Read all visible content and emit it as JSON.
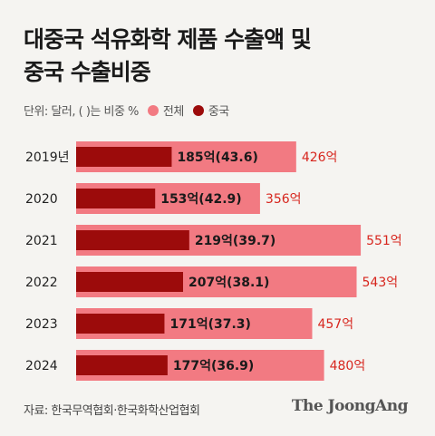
{
  "title_line1": "대중국 석유화학 제품 수출액 및",
  "title_line2": "중국 수출비중",
  "legend": {
    "unit": "단위: 달러, ( )는 비중 %",
    "total_label": "전체",
    "china_label": "중국",
    "total_color": "#f27a82",
    "china_color": "#9c0b0b"
  },
  "source": "자료: 한국무역협회·한국화학산업협회",
  "brand": "The JoongAng",
  "chart_data": {
    "type": "bar",
    "orientation": "horizontal",
    "categories": [
      "2019년",
      "2020",
      "2021",
      "2022",
      "2023",
      "2024"
    ],
    "series": [
      {
        "name": "전체",
        "values": [
          426,
          356,
          551,
          543,
          457,
          480
        ],
        "labels": [
          "426억",
          "356억",
          "551억",
          "543억",
          "457억",
          "480억"
        ]
      },
      {
        "name": "중국",
        "values": [
          185,
          153,
          219,
          207,
          171,
          177
        ],
        "labels": [
          "185억(43.6)",
          "153억(42.9)",
          "219억(39.7)",
          "207억(38.1)",
          "171억(37.3)",
          "177억(36.9)"
        ]
      }
    ],
    "china_share_percent": [
      43.6,
      42.9,
      39.7,
      38.1,
      37.3,
      36.9
    ]
  }
}
